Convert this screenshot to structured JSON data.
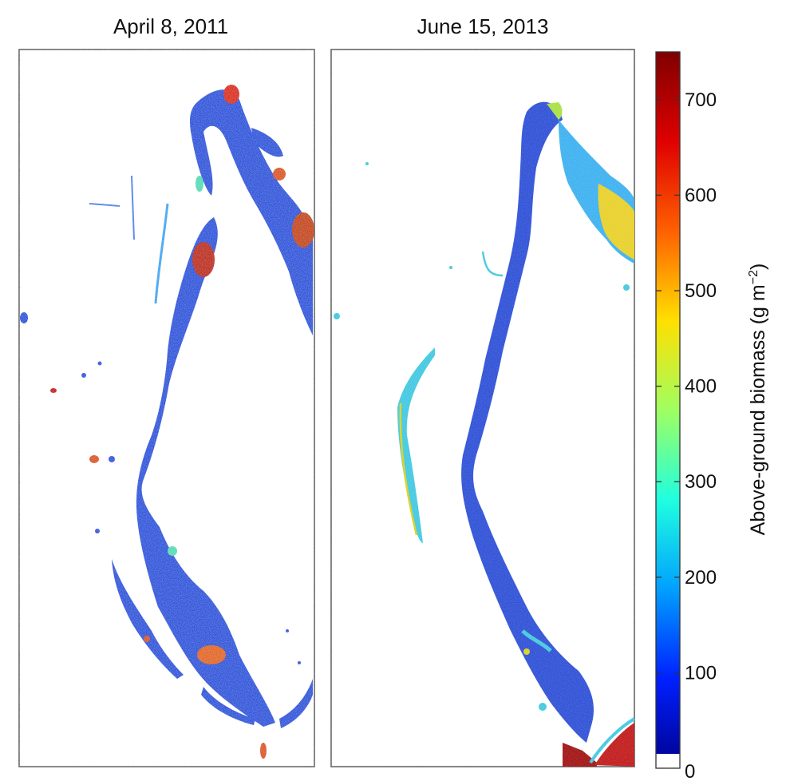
{
  "chart_data": {
    "type": "heatmap",
    "panels": [
      {
        "title": "April 8, 2011"
      },
      {
        "title": "June 15, 2013"
      }
    ],
    "colorbar": {
      "label": "Above-ground biomass (g m",
      "label_sup": "−2",
      "label_close": ")",
      "range": [
        0,
        750
      ],
      "ticks": [
        0,
        100,
        200,
        300,
        400,
        500,
        600,
        700
      ],
      "zero_color": "#ffffff",
      "colormap": [
        "#00008f",
        "#0020ff",
        "#00a0ff",
        "#20ffdf",
        "#9fff60",
        "#ffdf00",
        "#ff6000",
        "#df0000",
        "#800000"
      ]
    }
  }
}
